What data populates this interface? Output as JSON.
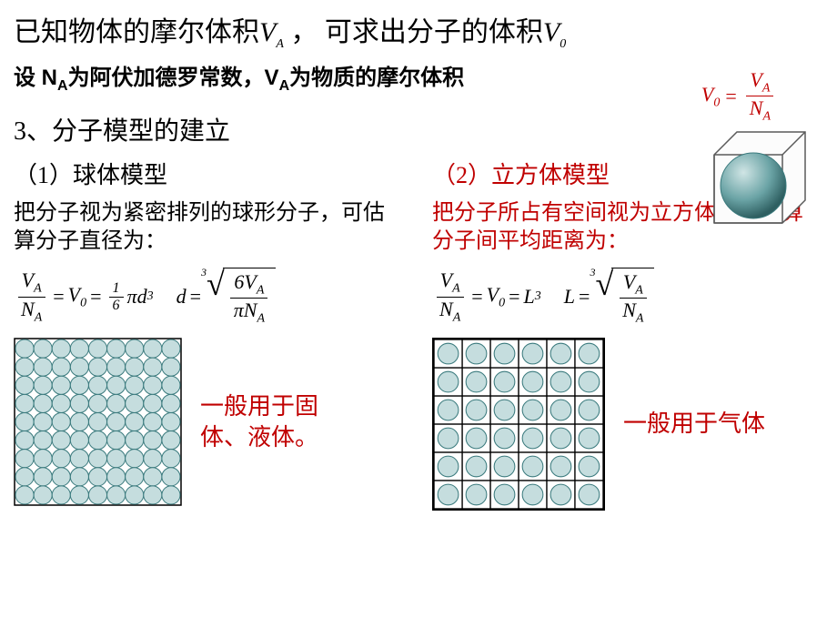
{
  "title": {
    "pre": "已知物体的摩尔体积",
    "varV": "V",
    "subA": "A",
    "mid": " ， 可求出分子的体积",
    "sub0": "0"
  },
  "subline": {
    "pre": "设 N",
    "subA": "A",
    "mid1": "为阿伏加德罗常数，V",
    "mid2": "为物质的摩尔体积"
  },
  "formula_top": {
    "lhs_var": "V",
    "lhs_sub": "0",
    "eq": " = ",
    "num_var": "V",
    "num_sub": "A",
    "den_var": "N",
    "den_sub": "A",
    "color": "#c00000"
  },
  "section3": "3、分子模型的建立",
  "sphere_model": {
    "title": "（1）球体模型",
    "desc": "把分子视为紧密排列的球形分子，可估算分子直径为：",
    "eq1": {
      "V": "V",
      "N": "N",
      "A": "A",
      "V0": "V",
      "zero": "0",
      "one_sixth_num": "1",
      "one_sixth_den": "6",
      "pi": "π",
      "d": "d",
      "cube": "3"
    },
    "eq2": {
      "d": "d",
      "idx": "3",
      "six": "6",
      "V": "V",
      "A": "A",
      "pi": "π",
      "N": "N"
    },
    "note": "一般用于固体、液体。",
    "grid": {
      "rows": 9,
      "cols": 9,
      "cell": 20,
      "fill": "#c5ddde",
      "stroke": "#3a7a7d"
    }
  },
  "cube_model": {
    "title": "（2）立方体模型",
    "title_color": "#c00000",
    "desc": "把分子所占有空间视为立方体，可估算分子间平均距离为：",
    "desc_color": "#c00000",
    "eq1": {
      "V": "V",
      "N": "N",
      "A": "A",
      "V0": "V",
      "zero": "0",
      "L": "L",
      "cube": "3"
    },
    "eq2": {
      "L": "L",
      "idx": "3",
      "V": "V",
      "A": "A",
      "N": "N"
    },
    "note": "一般用于气体",
    "grid": {
      "rows": 6,
      "cols": 6,
      "cell": 30,
      "fill": "#c5ddde",
      "stroke": "#000000",
      "circle_r": 11
    }
  },
  "cube_illus": {
    "size": 90,
    "depth": 30,
    "stroke": "#5a5a5a",
    "face_fill": "#f5f5f5",
    "sphere_fill_light": "#a8cccc",
    "sphere_fill_dark": "#3a7a7d"
  }
}
